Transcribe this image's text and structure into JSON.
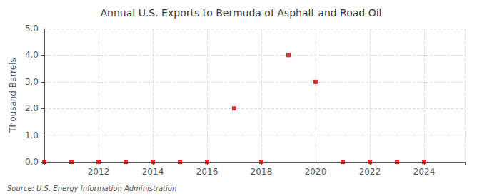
{
  "chart_data": {
    "type": "scatter",
    "title": "Annual U.S. Exports to Bermuda of Asphalt and Road Oil",
    "ylabel": "Thousand Barrels",
    "annotation": "Source: U.S. Energy Information Administration",
    "x": [
      2010,
      2011,
      2012,
      2013,
      2014,
      2015,
      2016,
      2017,
      2018,
      2019,
      2020,
      2021,
      2022,
      2023,
      2024
    ],
    "values": [
      0.0,
      0.0,
      0.0,
      0.0,
      0.0,
      0.0,
      0.0,
      2.0,
      0.0,
      4.0,
      3.0,
      0.0,
      0.0,
      0.0,
      0.0
    ],
    "color": "#cc0000",
    "marker": "square",
    "xlim": [
      2010.0,
      2025.5
    ],
    "xticks": [
      2012,
      2014,
      2016,
      2018,
      2020,
      2022,
      2024
    ],
    "ylim": [
      0.0,
      5.0
    ],
    "yticks": [
      {
        "value": 0.0,
        "label": "0.0"
      },
      {
        "value": 1.0,
        "label": "1.0"
      },
      {
        "value": 2.0,
        "label": "2.0"
      },
      {
        "value": 3.0,
        "label": "3.0"
      },
      {
        "value": 4.0,
        "label": "4.0"
      },
      {
        "value": 5.0,
        "label": "5.0"
      }
    ],
    "grid": true
  }
}
